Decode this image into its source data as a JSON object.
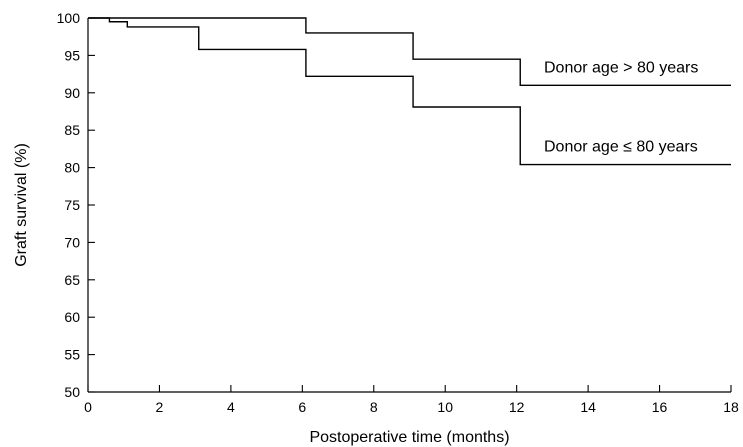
{
  "chart_data": {
    "type": "line",
    "step": true,
    "title": "",
    "xlabel": "Postoperative time (months)",
    "ylabel": "Graft survival (%)",
    "xlim": [
      0,
      18
    ],
    "ylim": [
      50,
      100
    ],
    "xticks": [
      0,
      2,
      4,
      6,
      8,
      10,
      12,
      14,
      16,
      18
    ],
    "yticks": [
      50,
      55,
      60,
      65,
      70,
      75,
      80,
      85,
      90,
      95,
      100
    ],
    "grid": false,
    "legend": "none",
    "series": [
      {
        "name": "Donor age > 80 years",
        "x": [
          0,
          6.1,
          9.1,
          12.1,
          18
        ],
        "y": [
          100,
          98,
          94.5,
          91,
          91
        ]
      },
      {
        "name": "Donor age ≤ 80 years",
        "x": [
          0,
          0.6,
          1.1,
          3.1,
          6.1,
          9.1,
          12.1,
          18
        ],
        "y": [
          100,
          99.5,
          98.8,
          95.8,
          92.2,
          88.1,
          80.4,
          80.4
        ]
      }
    ]
  }
}
